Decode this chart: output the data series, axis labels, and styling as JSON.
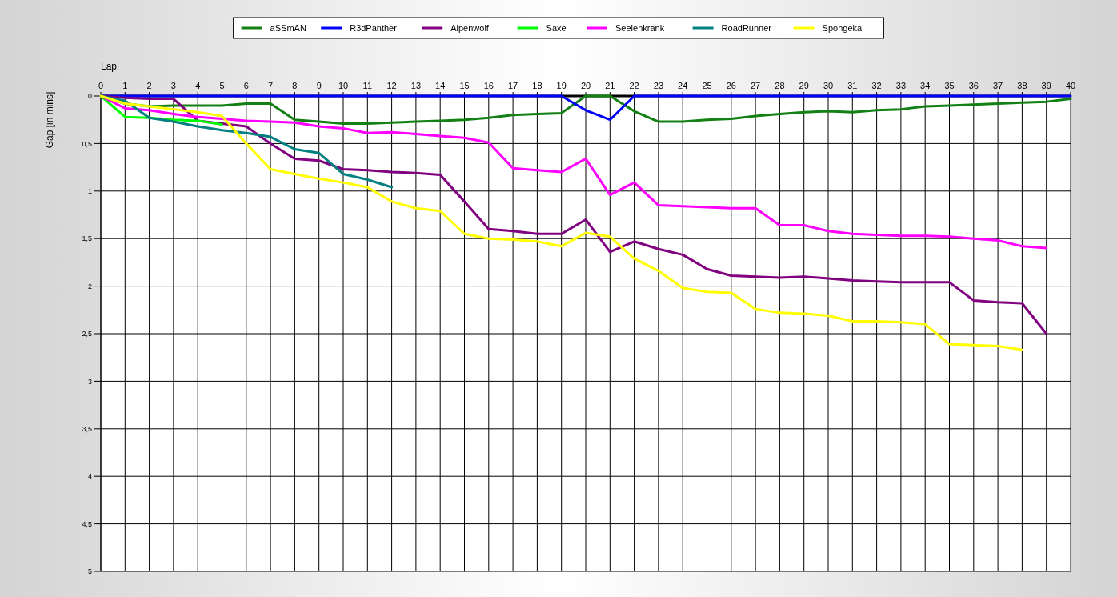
{
  "chart_data": {
    "type": "line",
    "xlabel": "Lap",
    "ylabel": "Gap [in mins]",
    "x": [
      0,
      1,
      2,
      3,
      4,
      5,
      6,
      7,
      8,
      9,
      10,
      11,
      12,
      13,
      14,
      15,
      16,
      17,
      18,
      19,
      20,
      21,
      22,
      23,
      24,
      25,
      26,
      27,
      28,
      29,
      30,
      31,
      32,
      33,
      34,
      35,
      36,
      37,
      38,
      39,
      40
    ],
    "xlim": [
      0,
      40
    ],
    "xticks": [
      0,
      1,
      2,
      3,
      4,
      5,
      6,
      7,
      8,
      9,
      10,
      11,
      12,
      13,
      14,
      15,
      16,
      17,
      18,
      19,
      20,
      21,
      22,
      23,
      24,
      25,
      26,
      27,
      28,
      29,
      30,
      31,
      32,
      33,
      34,
      35,
      36,
      37,
      38,
      39,
      40
    ],
    "ylim": [
      5,
      0
    ],
    "yticks": [
      0,
      {
        "value": 0.5,
        "label": "0,5"
      },
      1,
      {
        "value": 1.5,
        "label": "1,5"
      },
      2,
      {
        "value": 2.5,
        "label": "2,5"
      },
      3,
      {
        "value": 3.5,
        "label": "3,5"
      },
      4,
      {
        "value": 4.5,
        "label": "4,5"
      },
      5
    ],
    "grid": true,
    "legend": "top",
    "marker": "none",
    "line_style": "solid",
    "series": [
      {
        "name": "aSSmAN",
        "color": "#138013",
        "values": [
          0,
          0.08,
          0.11,
          0.1,
          0.1,
          0.1,
          0.08,
          0.08,
          0.25,
          0.27,
          0.29,
          0.29,
          0.28,
          0.27,
          0.26,
          0.25,
          0.23,
          0.2,
          0.19,
          0.18,
          0,
          0,
          0.16,
          0.27,
          0.27,
          0.25,
          0.24,
          0.21,
          0.19,
          0.17,
          0.16,
          0.17,
          0.15,
          0.14,
          0.11,
          0.1,
          0.09,
          0.08,
          0.07,
          0.06,
          0.03
        ]
      },
      {
        "name": "R3dPanther",
        "color": "#0000ff",
        "values": [
          0,
          0,
          0,
          0,
          0,
          0,
          0,
          0,
          0,
          0,
          0,
          0,
          0,
          0,
          0,
          0,
          0,
          0,
          0,
          0,
          0.15,
          0.25,
          0,
          0,
          0,
          0,
          0,
          0,
          0,
          0,
          0,
          0,
          0,
          0,
          0,
          0,
          0,
          0,
          0,
          0,
          0
        ]
      },
      {
        "name": "Alpenwolf",
        "color": "#800080",
        "values": [
          0,
          0.02,
          0.03,
          0.03,
          0.26,
          0.29,
          0.32,
          0.5,
          0.66,
          0.68,
          0.77,
          0.78,
          0.8,
          0.81,
          0.83,
          1.11,
          1.4,
          1.42,
          1.45,
          1.45,
          1.3,
          1.64,
          1.53,
          1.61,
          1.67,
          1.82,
          1.89,
          1.9,
          1.91,
          1.9,
          1.92,
          1.94,
          1.95,
          1.96,
          1.96,
          1.96,
          2.15,
          2.17,
          2.18,
          2.5,
          null
        ]
      },
      {
        "name": "Saxe",
        "color": "#00ff00",
        "values": [
          0,
          0.22,
          0.23,
          0.25,
          0.26,
          0.3,
          null,
          null,
          null,
          null,
          null,
          null,
          null,
          null,
          null,
          null,
          null,
          null,
          null,
          null,
          null,
          null,
          null,
          null,
          null,
          null,
          null,
          null,
          null,
          null,
          null,
          null,
          null,
          null,
          null,
          null,
          null,
          null,
          null,
          null,
          null
        ]
      },
      {
        "name": "Seelenkrank",
        "color": "#ff00ff",
        "values": [
          0,
          0.13,
          0.15,
          0.19,
          0.22,
          0.24,
          0.26,
          0.27,
          0.28,
          0.32,
          0.34,
          0.39,
          0.38,
          0.4,
          0.42,
          0.44,
          0.49,
          0.76,
          0.78,
          0.8,
          0.66,
          1.04,
          0.91,
          1.15,
          1.16,
          1.17,
          1.18,
          1.18,
          1.36,
          1.36,
          1.42,
          1.45,
          1.46,
          1.47,
          1.47,
          1.48,
          1.5,
          1.52,
          1.58,
          1.6,
          null
        ]
      },
      {
        "name": "RoadRunner",
        "color": "#008080",
        "values": [
          0,
          0.05,
          0.23,
          0.27,
          0.32,
          0.36,
          0.39,
          0.43,
          0.56,
          0.6,
          0.82,
          0.88,
          0.96,
          null,
          null,
          null,
          null,
          null,
          null,
          null,
          null,
          null,
          null,
          null,
          null,
          null,
          null,
          null,
          null,
          null,
          null,
          null,
          null,
          null,
          null,
          null,
          null,
          null,
          null,
          null,
          null
        ]
      },
      {
        "name": "Spongeka",
        "color": "#ffff00",
        "values": [
          0,
          0.08,
          0.11,
          0.14,
          0.17,
          0.21,
          0.5,
          0.77,
          0.82,
          0.87,
          0.91,
          0.96,
          1.11,
          1.18,
          1.21,
          1.45,
          1.5,
          1.51,
          1.53,
          1.58,
          1.44,
          1.48,
          1.71,
          1.84,
          2.02,
          2.06,
          2.07,
          2.24,
          2.28,
          2.29,
          2.31,
          2.37,
          2.37,
          2.38,
          2.4,
          2.61,
          2.62,
          2.63,
          2.67,
          null,
          null
        ]
      }
    ]
  }
}
